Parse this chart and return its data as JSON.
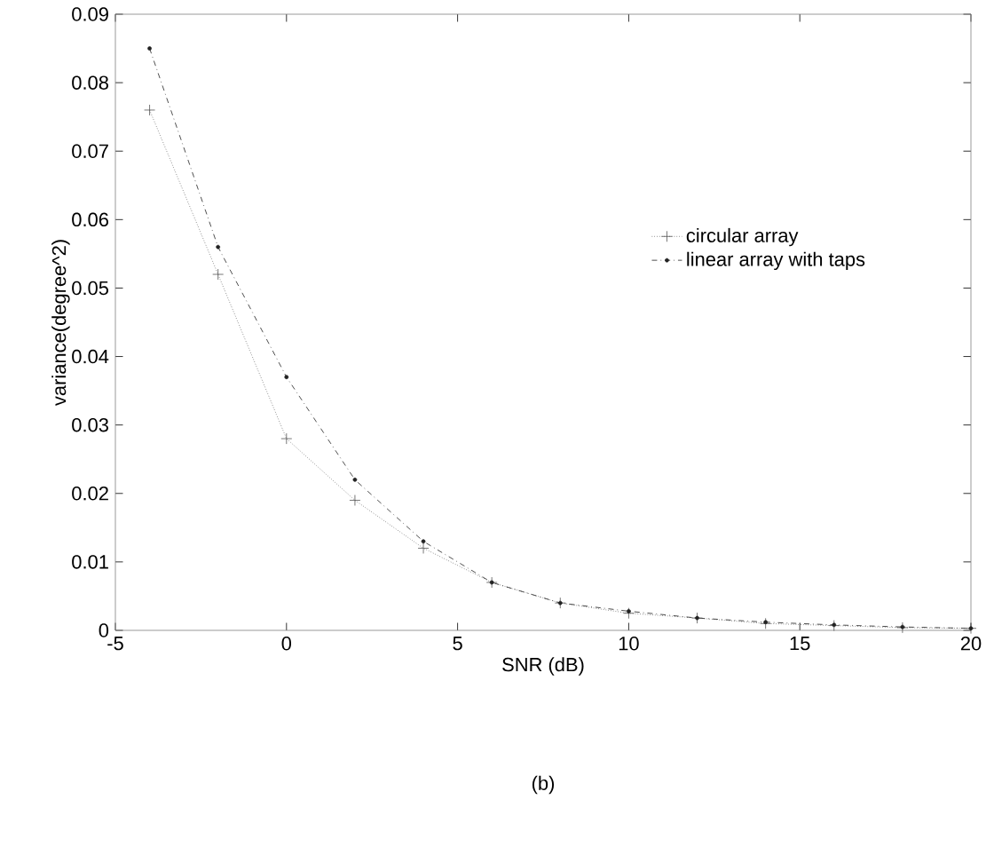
{
  "chart_data": {
    "type": "line",
    "xlabel": "SNR (dB)",
    "ylabel": "variance(degree^2)",
    "x": [
      -4,
      -2,
      0,
      2,
      4,
      6,
      8,
      10,
      12,
      14,
      16,
      18,
      20
    ],
    "series": [
      {
        "name": "circular array",
        "color": "#555555",
        "marker": "cross",
        "line_style": "dotted",
        "values": [
          0.076,
          0.052,
          0.028,
          0.019,
          0.012,
          0.007,
          0.004,
          0.0025,
          0.0018,
          0.001,
          0.0007,
          0.0004,
          0.0003
        ]
      },
      {
        "name": "linear array with taps",
        "color": "#222222",
        "marker": "circle",
        "line_style": "dashed",
        "values": [
          0.085,
          0.056,
          0.037,
          0.022,
          0.013,
          0.007,
          0.004,
          0.0028,
          0.0018,
          0.0012,
          0.0008,
          0.0005,
          0.0003
        ]
      }
    ],
    "xlim": [
      -5,
      20
    ],
    "ylim": [
      0,
      0.09
    ],
    "xticks": [
      -5,
      0,
      5,
      10,
      15,
      20
    ],
    "yticks": [
      0,
      0.01,
      0.02,
      0.03,
      0.04,
      0.05,
      0.06,
      0.07,
      0.08,
      0.09
    ],
    "legend": "right",
    "annotations": [
      "(b)"
    ]
  }
}
